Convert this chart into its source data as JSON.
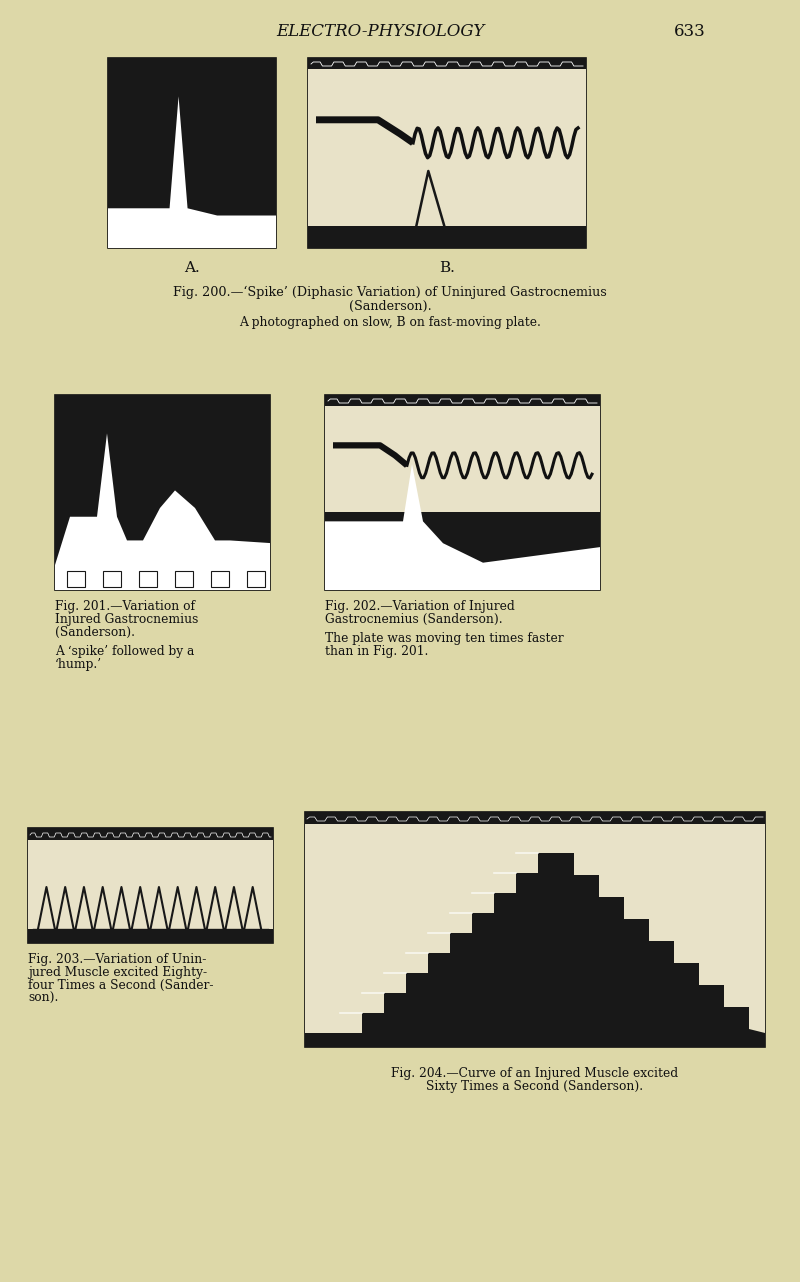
{
  "bg_color": "#ddd8a8",
  "dark_color": "#111111",
  "fig_bg": "#e8e2c8",
  "title": "ELECTRO-PHYSIOLOGY",
  "page_num": "633",
  "label_A": "A.",
  "label_B": "B.",
  "caption200_line1": "Fig. 200.—‘Spike’ (Diphasic Variation) of Uninjured Gastrocnemius",
  "caption200_line2": "(Sanderson).",
  "caption200b": "A photographed on slow, B on fast-moving plate.",
  "caption201_line1": "Fig. 201.—Variation of",
  "caption201_line2": "Injured Gastrocnemius",
  "caption201_line3": "(Sanderson).",
  "caption201b_line1": "A ‘spike’ followed by a",
  "caption201b_line2": "‘hump.’",
  "caption202_line1": "Fig. 202.—Variation of Injured",
  "caption202_line2": "Gastrocnemius (Sanderson).",
  "caption202b_line1": "The plate was moving ten times faster",
  "caption202b_line2": "than in Fig. 201.",
  "caption203_line1": "Fig. 203.—Variation of Unin-",
  "caption203_line2": "jured Muscle excited Eighty-",
  "caption203_line3": "four Times a Second (Sander-",
  "caption203_line4": "son).",
  "caption204_line1": "Fig. 204.—Curve of an Injured Muscle excited",
  "caption204_line2": "Sixty Times a Second (Sanderson)."
}
